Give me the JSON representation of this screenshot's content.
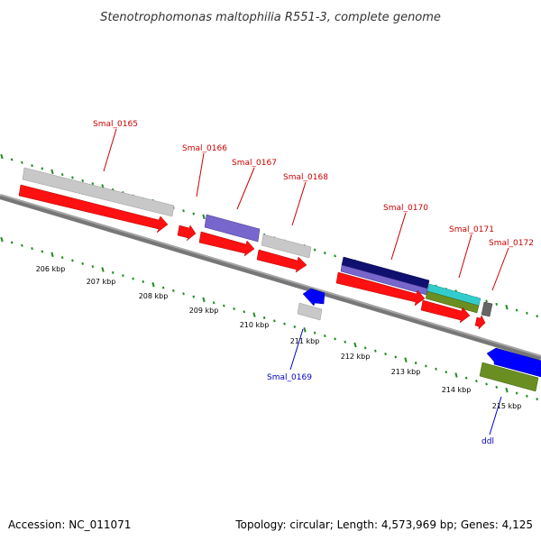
{
  "title": "Stenotrophomonas maltophilia R551-3, complete genome",
  "accession": "Accession: NC_011071",
  "summary": "Topology: circular; Length: 4,573,969 bp; Genes: 4,125",
  "colors": {
    "red": "#ff1111",
    "red_dark": "#cc0000",
    "grey": "#c8c8c8",
    "purple": "#7766cc",
    "navy": "#101070",
    "cyan": "#33cccc",
    "olive": "#6b8e23",
    "blue": "#0000ff",
    "tick_green": "#228b22",
    "label_red": "#cc0000",
    "label_blue": "#0000cc"
  },
  "scale": {
    "tick_labels": [
      "206 kbp",
      "207 kbp",
      "208 kbp",
      "209 kbp",
      "210 kbp",
      "211 kbp",
      "212 kbp",
      "213 kbp",
      "214 kbp",
      "215 kbp"
    ]
  },
  "genes": [
    {
      "label": "Smal_0165",
      "strand": "forward",
      "color": "red"
    },
    {
      "label": "Smal_0166",
      "strand": "forward",
      "color": "red"
    },
    {
      "label": "Smal_0167",
      "strand": "forward",
      "color": "red"
    },
    {
      "label": "Smal_0168",
      "strand": "forward",
      "color": "red"
    },
    {
      "label": "Smal_0169",
      "strand": "reverse",
      "color": "blue"
    },
    {
      "label": "Smal_0170",
      "strand": "forward",
      "color": "red"
    },
    {
      "label": "Smal_0171",
      "strand": "forward",
      "color": "red"
    },
    {
      "label": "Smal_0172",
      "strand": "forward",
      "color": "red"
    },
    {
      "label": "ddl",
      "strand": "reverse",
      "color": "blue"
    }
  ]
}
